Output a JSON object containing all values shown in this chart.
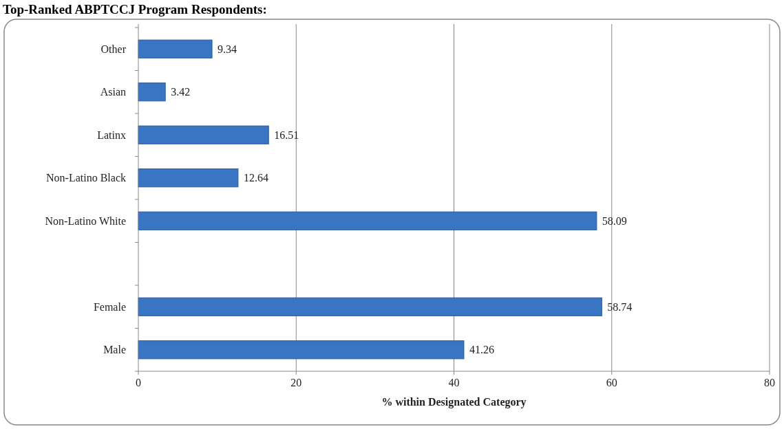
{
  "chart_data": {
    "type": "bar",
    "orientation": "horizontal",
    "title": "Top-Ranked ABPTCCJ Program Respondents:",
    "xlabel": "% within Designated Category",
    "categories": [
      "Other",
      "Asian",
      "Latinx",
      "Non-Latino Black",
      "Non-Latino White",
      null,
      "Female",
      "Male"
    ],
    "values": [
      9.34,
      3.42,
      16.51,
      12.64,
      58.09,
      null,
      58.74,
      41.26
    ],
    "color": "#3a75c4",
    "xlim": [
      0,
      80
    ],
    "xticks": [
      0,
      20,
      40,
      60,
      80
    ],
    "grid": "x",
    "data_labels": true
  }
}
